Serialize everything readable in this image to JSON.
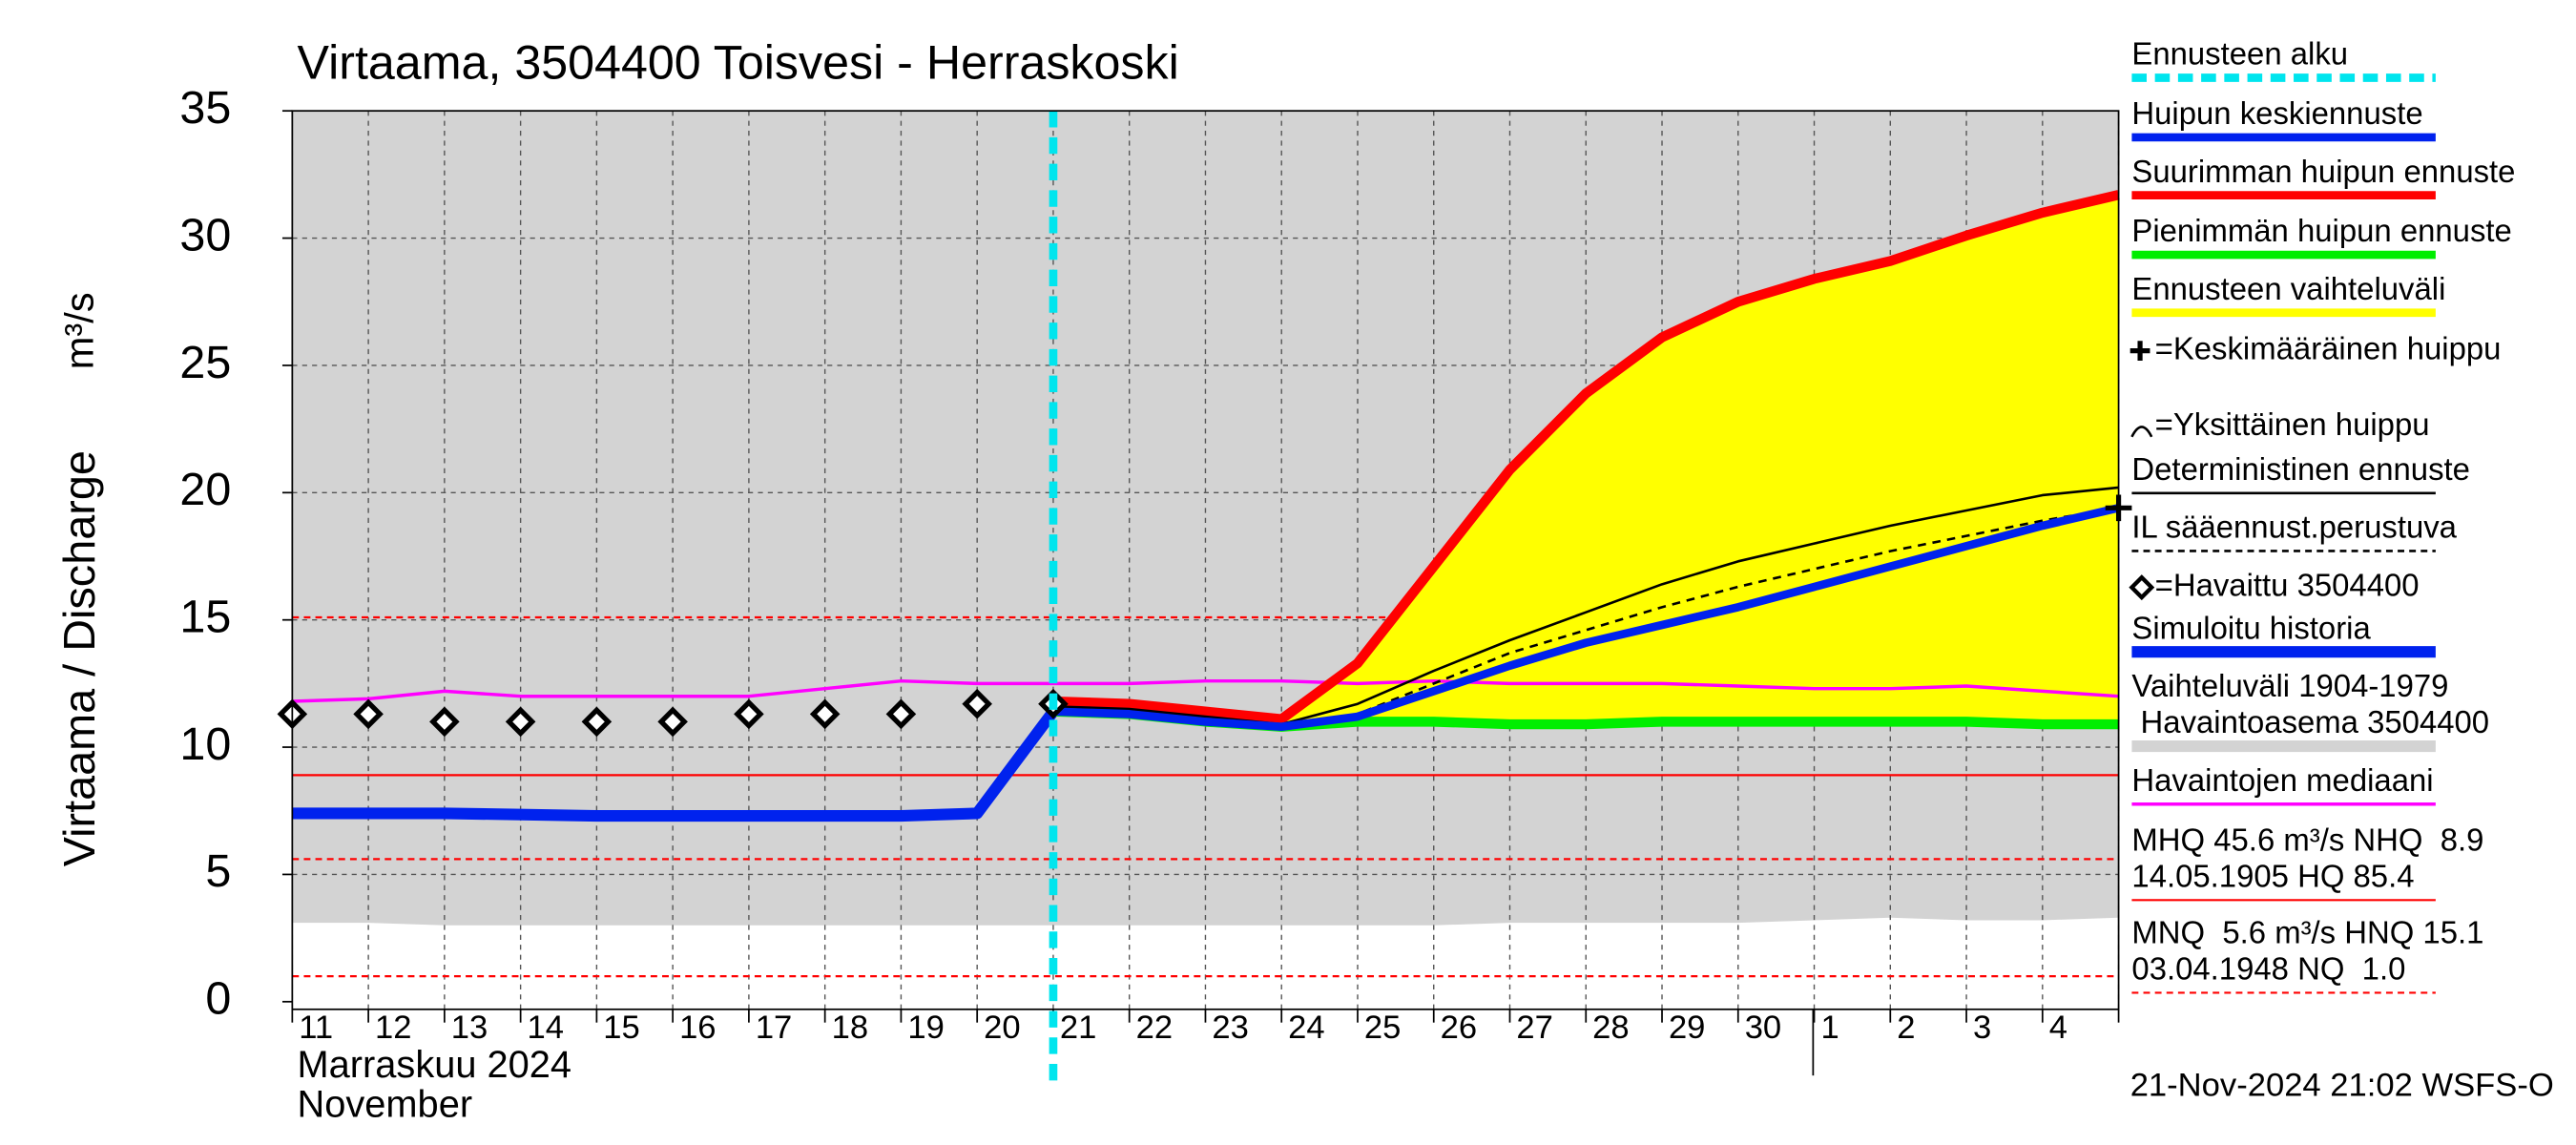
{
  "chart_data": {
    "type": "line",
    "title": "Virtaama, 3504400 Toisvesi - Herraskoski",
    "y_label": "Virtaama / Discharge",
    "y_unit": "m³/s",
    "month_fi": "Marraskuu 2024",
    "month_en": "November",
    "timestamp": "21-Nov-2024 21:02 WSFS-O",
    "categories": [
      "11",
      "12",
      "13",
      "14",
      "15",
      "16",
      "17",
      "18",
      "19",
      "20",
      "21",
      "22",
      "23",
      "24",
      "25",
      "26",
      "27",
      "28",
      "29",
      "30",
      "1",
      "2",
      "3",
      "4",
      null
    ],
    "ylim": [
      -0.3,
      35
    ],
    "yticks": [
      0,
      5,
      10,
      15,
      20,
      25,
      30,
      35
    ],
    "grid": true,
    "range_color": "#ffff00",
    "band": {
      "color": "#d3d3d3",
      "lower": [
        3.1,
        3.1,
        3.0,
        3.0,
        3.0,
        3.0,
        3.0,
        3.0,
        3.0,
        3.0,
        3.0,
        3.0,
        3.0,
        3.0,
        3.0,
        3.0,
        3.1,
        3.1,
        3.1,
        3.1,
        3.2,
        3.3,
        3.2,
        3.2,
        3.3
      ],
      "upper": [
        35,
        35,
        35,
        35,
        35,
        35,
        35,
        35,
        35,
        35,
        35,
        35,
        35,
        35,
        35,
        35,
        35,
        35,
        35,
        35,
        35,
        35,
        35,
        35,
        35
      ]
    },
    "hlines": [
      {
        "value": 15.1,
        "color": "#ff0000",
        "dash": true
      },
      {
        "value": 8.9,
        "color": "#ff0000",
        "dash": false
      },
      {
        "value": 5.6,
        "color": "#ff0000",
        "dash": true
      },
      {
        "value": 1.0,
        "color": "#ff0000",
        "dash": true
      }
    ],
    "forecast_start": 10,
    "forecast_color": "#00e5ee",
    "mean_peak": {
      "x": 24,
      "y": 19.4
    },
    "series": [
      {
        "name": "Huipun keskiennuste",
        "color": "#0022ee",
        "width": 5,
        "values": [
          null,
          null,
          null,
          null,
          null,
          null,
          null,
          null,
          null,
          null,
          11.4,
          11.3,
          11.0,
          10.8,
          11.2,
          12.2,
          13.2,
          14.1,
          14.8,
          15.5,
          16.3,
          17.1,
          17.9,
          18.7,
          19.4
        ]
      },
      {
        "name": "Suurimman huipun ennuste",
        "color": "#ff0000",
        "width": 6,
        "values": [
          null,
          null,
          null,
          null,
          null,
          null,
          null,
          null,
          null,
          null,
          11.8,
          11.7,
          11.4,
          11.1,
          13.3,
          17.1,
          20.9,
          23.9,
          26.1,
          27.5,
          28.4,
          29.1,
          30.1,
          31.0,
          31.7
        ]
      },
      {
        "name": "Pienimmän huipun ennuste",
        "color": "#00ee00",
        "width": 6,
        "values": [
          null,
          null,
          null,
          null,
          null,
          null,
          null,
          null,
          null,
          null,
          11.4,
          11.3,
          11.0,
          10.8,
          11.0,
          11.0,
          10.9,
          10.9,
          11.0,
          11.0,
          11.0,
          11.0,
          11.0,
          10.9,
          10.9
        ]
      },
      {
        "name": "Deterministinen ennuste",
        "color": "#000000",
        "width": 1.5,
        "values": [
          null,
          null,
          null,
          null,
          null,
          null,
          null,
          null,
          null,
          null,
          11.6,
          11.5,
          11.2,
          10.9,
          11.7,
          13.0,
          14.2,
          15.3,
          16.4,
          17.3,
          18.0,
          18.7,
          19.3,
          19.9,
          20.2
        ]
      },
      {
        "name": "IL sääennust.perustuva",
        "color": "#000000",
        "width": 1.5,
        "dash": true,
        "values": [
          null,
          null,
          null,
          null,
          null,
          null,
          null,
          null,
          null,
          null,
          11.5,
          11.4,
          11.1,
          10.9,
          11.3,
          12.5,
          13.7,
          14.6,
          15.5,
          16.3,
          17.0,
          17.7,
          18.3,
          18.9,
          19.4
        ]
      },
      {
        "name": "=Havaittu 3504400",
        "color": "#000000",
        "marker": "diamond",
        "values": [
          11.3,
          11.3,
          11.0,
          11.0,
          11.0,
          11.0,
          11.3,
          11.3,
          11.3,
          11.7,
          11.7,
          null,
          null,
          null,
          null,
          null,
          null,
          null,
          null,
          null,
          null,
          null,
          null,
          null,
          null
        ]
      },
      {
        "name": "Simuloitu historia",
        "color": "#0022ee",
        "width": 7,
        "values": [
          7.4,
          7.4,
          7.4,
          7.35,
          7.3,
          7.3,
          7.3,
          7.3,
          7.3,
          7.4,
          11.4,
          null,
          null,
          null,
          null,
          null,
          null,
          null,
          null,
          null,
          null,
          null,
          null,
          null,
          null
        ]
      },
      {
        "name": "Havaintojen mediaani",
        "color": "#ff00ff",
        "width": 2,
        "values": [
          11.8,
          11.9,
          12.2,
          12.0,
          12.0,
          12.0,
          12.0,
          12.3,
          12.6,
          12.5,
          12.5,
          12.5,
          12.6,
          12.6,
          12.5,
          12.6,
          12.5,
          12.5,
          12.5,
          12.4,
          12.3,
          12.3,
          12.4,
          12.2,
          12.0
        ]
      }
    ],
    "legend": [
      {
        "lines": [
          "Ennusteen alku"
        ],
        "color": "#00e5ee",
        "width": 5,
        "dash": true
      },
      {
        "lines": [
          "Huipun keskiennuste"
        ],
        "color": "#0022ee",
        "width": 5
      },
      {
        "lines": [
          "Suurimman huipun ennuste"
        ],
        "color": "#ff0000",
        "width": 5
      },
      {
        "lines": [
          "Pienimmän huipun ennuste"
        ],
        "color": "#00ee00",
        "width": 5
      },
      {
        "lines": [
          "Ennusteen vaihteluväli"
        ],
        "color": "#ffff00",
        "width": 5
      },
      {
        "lines": [
          "=Keskimääräinen huippu"
        ],
        "symbol": "plus"
      },
      {
        "lines": [
          "=Yksittäinen huippu"
        ],
        "symbol": "arc"
      },
      {
        "lines": [
          "Deterministinen ennuste"
        ],
        "color": "#000000",
        "width": 1.5
      },
      {
        "lines": [
          "IL sääennust.perustuva"
        ],
        "color": "#000000",
        "width": 1.5,
        "dash": true
      },
      {
        "lines": [
          "=Havaittu 3504400"
        ],
        "symbol": "diamond"
      },
      {
        "lines": [
          "Simuloitu historia"
        ],
        "color": "#0022ee",
        "width": 7
      },
      {
        "lines": [
          "Vaihteluväli 1904-1979",
          " Havaintoasema 3504400"
        ],
        "color": "#d3d3d3",
        "width": 7
      },
      {
        "lines": [
          "Havaintojen mediaani"
        ],
        "color": "#ff00ff",
        "width": 2
      },
      {
        "lines": [
          "MHQ 45.6 m³/s NHQ  8.9",
          "14.05.1905 HQ 85.4"
        ],
        "color": "#ff0000",
        "width": 1.2
      },
      {
        "lines": [
          "MNQ  5.6 m³/s HNQ 15.1",
          "03.04.1948 NQ  1.0"
        ],
        "color": "#ff0000",
        "width": 1.2,
        "dash": true
      }
    ]
  }
}
